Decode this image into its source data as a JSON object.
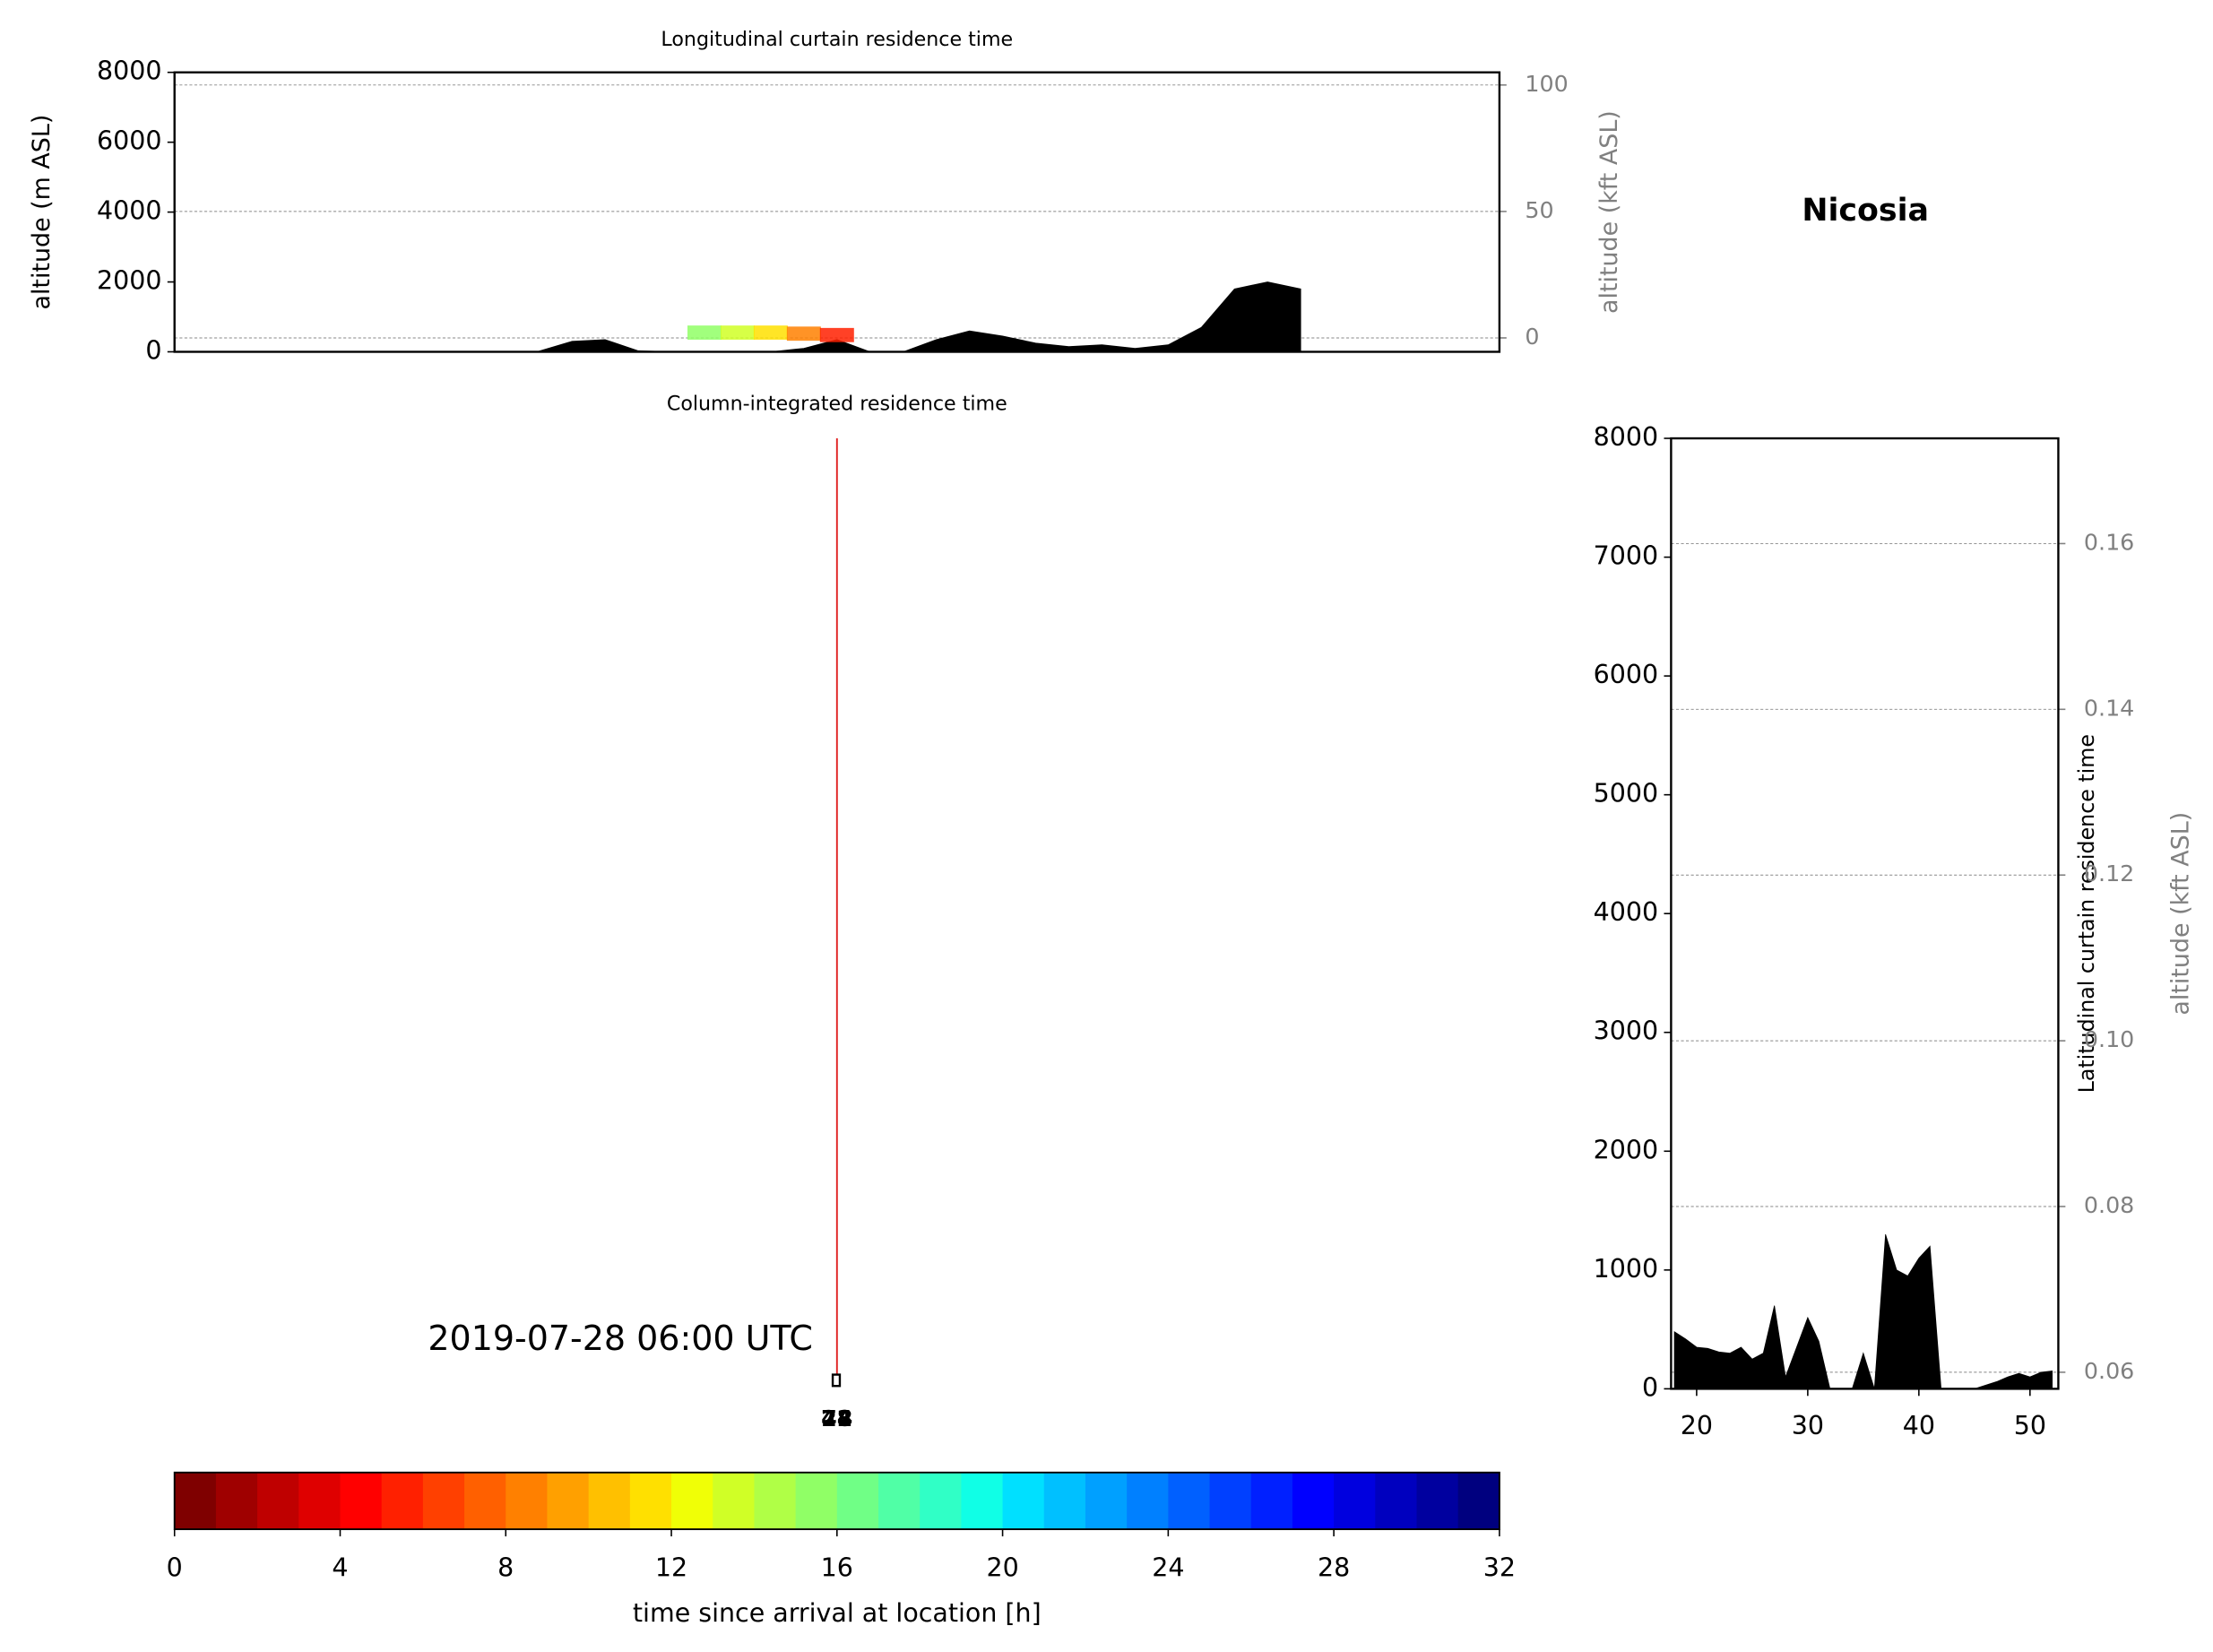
{
  "figure_title": "Nicosia",
  "chart_data": [
    {
      "type": "area",
      "title": "Longitudinal curtain residence time",
      "ylabel": "altitude (m ASL)",
      "y2label": "altitude (kft ASL)",
      "ylim": [
        0,
        8000
      ],
      "yticks": [
        0,
        2000,
        4000,
        6000,
        8000
      ],
      "y2lim": [
        -5.5,
        105
      ],
      "y2ticks": [
        0,
        50,
        100
      ],
      "grid": "y2",
      "series": [
        {
          "color": "#000000",
          "values": [
            0,
            0,
            0,
            0,
            0,
            0,
            0,
            0,
            0,
            0,
            0,
            20,
            300,
            350,
            30,
            0,
            0,
            0,
            0,
            100,
            350,
            0,
            0,
            350,
            600,
            450,
            250,
            150,
            200,
            100,
            200,
            700,
            1800,
            2000,
            1800,
            null,
            null,
            null,
            null,
            null,
            null
          ]
        },
        {
          "colors": [
            null,
            null,
            null,
            null,
            null,
            null,
            null,
            null,
            null,
            null,
            null,
            null,
            null,
            null,
            null,
            null,
            "#90ff66",
            "#d0ff26",
            "#ffe000",
            "#ff8000",
            "#ff2000",
            null,
            null,
            null,
            null,
            null,
            null,
            null,
            null,
            null,
            null,
            null,
            null,
            null,
            null,
            null,
            null,
            null,
            null,
            null,
            null
          ],
          "values": [
            null,
            null,
            null,
            null,
            null,
            null,
            null,
            null,
            null,
            null,
            null,
            null,
            null,
            null,
            null,
            null,
            550,
            550,
            550,
            520,
            480,
            null,
            null,
            null,
            null,
            null,
            null,
            null,
            null,
            null,
            null,
            null,
            null,
            null,
            null,
            null,
            null,
            null,
            null,
            null,
            null
          ]
        }
      ]
    },
    {
      "type": "map",
      "title": "Column-integrated residence time",
      "annotation": "2019-07-28 06:00 UTC",
      "markers": [
        "72",
        "48",
        "24"
      ]
    },
    {
      "type": "area",
      "title": "Latitudinal curtain residence time",
      "y2label": "altitude (kft ASL)",
      "xlim": [
        17.7,
        52.55
      ],
      "xticks": [
        20,
        30,
        40,
        50
      ],
      "ylim": [
        0,
        8000
      ],
      "yticks": [
        0,
        1000,
        2000,
        3000,
        4000,
        5000,
        6000,
        7000,
        8000
      ],
      "y2lim": [
        0.058,
        0.1727
      ],
      "y2ticks": [
        0.06,
        0.08,
        {
          "value": 0.1,
          "label": "0.10"
        },
        0.12,
        0.14,
        0.16
      ],
      "grid": "y2",
      "x": [
        18,
        19,
        20,
        21,
        22,
        23,
        24,
        25,
        26,
        27,
        28,
        29,
        30,
        31,
        32,
        33,
        34,
        35,
        36,
        37,
        38,
        39,
        40,
        41,
        42,
        43,
        44,
        45,
        46,
        47,
        48,
        49,
        50,
        51,
        52
      ],
      "series": [
        {
          "color": "#000000",
          "values": [
            480,
            420,
            350,
            340,
            310,
            300,
            350,
            250,
            300,
            700,
            100,
            350,
            600,
            400,
            0,
            0,
            0,
            300,
            0,
            1300,
            1000,
            950,
            1100,
            1200,
            0,
            0,
            0,
            0,
            30,
            60,
            100,
            130,
            100,
            140,
            150
          ]
        }
      ]
    },
    {
      "type": "colorbar",
      "xlabel": "time since arrival at location [h]",
      "xlim": [
        0,
        32
      ],
      "xticks": [
        0,
        4,
        8,
        12,
        16,
        20,
        24,
        28,
        32
      ],
      "bins": [
        0,
        1,
        2,
        3,
        4,
        5,
        6,
        7,
        8,
        9,
        10,
        11,
        12,
        13,
        14,
        15,
        16,
        17,
        18,
        19,
        20,
        21,
        22,
        23,
        24,
        25,
        26,
        27,
        28,
        29,
        30,
        31,
        32
      ],
      "colors": [
        "#7f0000",
        "#9f0000",
        "#bf0000",
        "#df0000",
        "#ff0000",
        "#ff2000",
        "#ff4000",
        "#ff6000",
        "#ff8000",
        "#ffa000",
        "#ffc000",
        "#ffe000",
        "#f0ff06",
        "#d0ff26",
        "#b0ff46",
        "#90ff66",
        "#70ff86",
        "#50ffa6",
        "#30ffc6",
        "#10ffe6",
        "#00e0ff",
        "#00c0ff",
        "#00a0ff",
        "#0080ff",
        "#0060ff",
        "#0040ff",
        "#0020ff",
        "#0000ff",
        "#0000df",
        "#0000bf",
        "#00009f",
        "#00007f"
      ]
    }
  ]
}
